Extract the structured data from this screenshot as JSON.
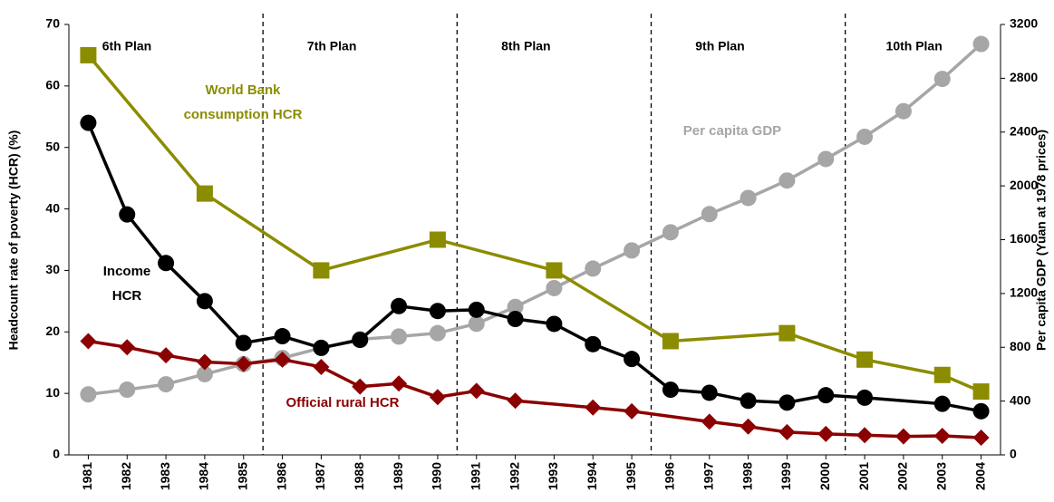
{
  "chart_data": {
    "type": "line",
    "y_label": "Headcount rate of poverty (HCR) (%)",
    "y2_label": "Per capita GDP (Yuan at 1978 prices)",
    "xlim": [
      1980.5,
      2004.5
    ],
    "xticks": [
      1981,
      1982,
      1983,
      1984,
      1985,
      1986,
      1987,
      1988,
      1989,
      1990,
      1991,
      1992,
      1993,
      1994,
      1995,
      1996,
      1997,
      1998,
      1999,
      2000,
      2001,
      2002,
      2003,
      2004
    ],
    "ylim": [
      0,
      70
    ],
    "yticks": [
      0,
      10,
      20,
      30,
      40,
      50,
      60,
      70
    ],
    "y2lim": [
      0,
      3200
    ],
    "y2ticks": [
      0,
      400,
      800,
      1200,
      1600,
      2000,
      2400,
      2800,
      3200
    ],
    "plan_dividers": [
      1985.5,
      1990.5,
      1995.5,
      2000.5
    ],
    "plans": [
      "6th Plan",
      "7th Plan",
      "8th Plan",
      "9th Plan",
      "10th Plan"
    ],
    "annotations": [
      {
        "lines": [
          "World Bank",
          "consumption HCR"
        ],
        "color": "#8c8c00"
      },
      {
        "lines": [
          "Income",
          "HCR"
        ],
        "color": "#000000"
      },
      {
        "lines": [
          "Per capita GDP"
        ],
        "color": "#a6a6a6"
      },
      {
        "lines": [
          "Official rural HCR"
        ],
        "color": "#8b0000"
      }
    ],
    "series": [
      {
        "name": "Per capita GDP",
        "color": "#a6a6a6",
        "marker": "circle",
        "axis": "y2",
        "x": [
          1981,
          1982,
          1983,
          1984,
          1985,
          1986,
          1987,
          1988,
          1989,
          1990,
          1991,
          1992,
          1993,
          1994,
          1995,
          1996,
          1997,
          1998,
          1999,
          2000,
          2001,
          2002,
          2003,
          2004
        ],
        "values": [
          450,
          485,
          525,
          600,
          675,
          720,
          795,
          860,
          880,
          905,
          975,
          1100,
          1240,
          1385,
          1520,
          1655,
          1790,
          1910,
          2040,
          2200,
          2365,
          2555,
          2795,
          3055
        ]
      },
      {
        "name": "World Bank consumption HCR",
        "color": "#8c8c00",
        "marker": "square",
        "x": [
          1981,
          1984,
          1987,
          1990,
          1993,
          1996,
          1999,
          2001,
          2003,
          2004
        ],
        "values": [
          65,
          42.5,
          30,
          35,
          30,
          18.5,
          19.8,
          15.5,
          13,
          10.3
        ]
      },
      {
        "name": "Official rural HCR",
        "color": "#8b0000",
        "marker": "diamond",
        "x": [
          1981,
          1982,
          1983,
          1984,
          1985,
          1986,
          1987,
          1988,
          1989,
          1990,
          1991,
          1992,
          1994,
          1995,
          1997,
          1998,
          1999,
          2000,
          2001,
          2002,
          2003,
          2004
        ],
        "values": [
          18.5,
          17.5,
          16.2,
          15.1,
          14.8,
          15.5,
          14.3,
          11.1,
          11.6,
          9.4,
          10.4,
          8.8,
          7.7,
          7.1,
          5.4,
          4.6,
          3.7,
          3.4,
          3.2,
          3.0,
          3.1,
          2.8
        ]
      },
      {
        "name": "Income HCR",
        "color": "#000000",
        "marker": "circle",
        "x": [
          1981,
          1982,
          1983,
          1984,
          1985,
          1986,
          1987,
          1988,
          1989,
          1990,
          1991,
          1992,
          1993,
          1994,
          1995,
          1996,
          1997,
          1998,
          1999,
          2000,
          2001,
          2003,
          2004
        ],
        "values": [
          54,
          39.1,
          31.2,
          25,
          18.2,
          19.3,
          17.4,
          18.7,
          24.2,
          23.4,
          23.6,
          22.1,
          21.3,
          18,
          15.6,
          10.6,
          10.1,
          8.8,
          8.5,
          9.7,
          9.3,
          8.3,
          7.1
        ]
      }
    ]
  }
}
